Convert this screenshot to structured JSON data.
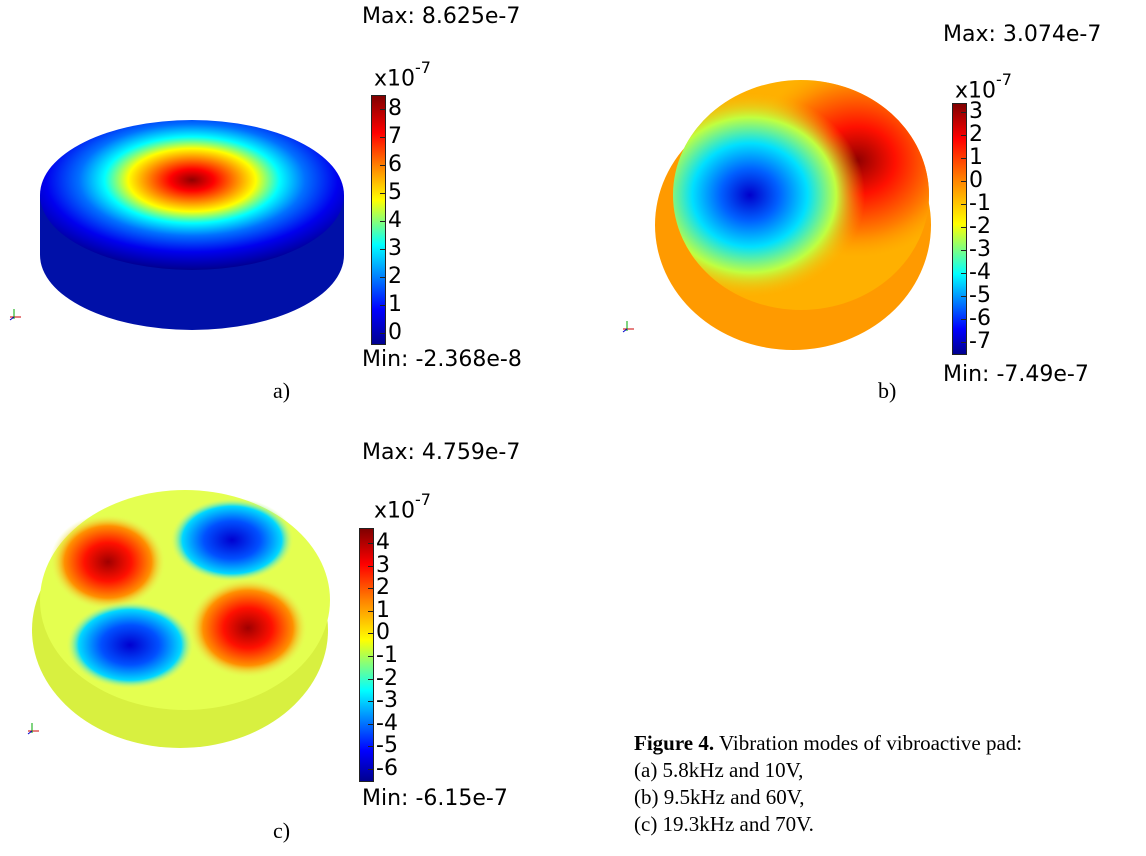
{
  "figure": {
    "caption": {
      "bold": "Figure 4.",
      "text": " Vibration modes of vibroactive pad:",
      "lines": [
        "(a) 5.8kHz and 10V,",
        "(b) 9.5kHz and 60V,",
        "(c) 19.3kHz and 70V."
      ]
    },
    "panels": [
      {
        "id": "a",
        "sub_label": "a)",
        "max_label": "Max: 8.625e-7",
        "min_label": "Min: -2.368e-8",
        "exponent_base": "x10",
        "exponent_power": "-7",
        "ticks": [
          "8",
          "7",
          "6",
          "5",
          "4",
          "3",
          "2",
          "1",
          "0"
        ]
      },
      {
        "id": "b",
        "sub_label": "b)",
        "max_label": "Max: 3.074e-7",
        "min_label": "Min: -7.49e-7",
        "exponent_base": "x10",
        "exponent_power": "-7",
        "ticks": [
          "3",
          "2",
          "1",
          "0",
          "-1",
          "-2",
          "-3",
          "-4",
          "-5",
          "-6",
          "-7"
        ]
      },
      {
        "id": "c",
        "sub_label": "c)",
        "max_label": "Max: 4.759e-7",
        "min_label": "Min: -6.15e-7",
        "exponent_base": "x10",
        "exponent_power": "-7",
        "ticks": [
          "4",
          "3",
          "2",
          "1",
          "0",
          "-1",
          "-2",
          "-3",
          "-4",
          "-5",
          "-6"
        ]
      }
    ],
    "colormap": [
      "#00008f",
      "#0000ff",
      "#00ffff",
      "#ffff00",
      "#ff8000",
      "#ff0000",
      "#800000"
    ]
  }
}
